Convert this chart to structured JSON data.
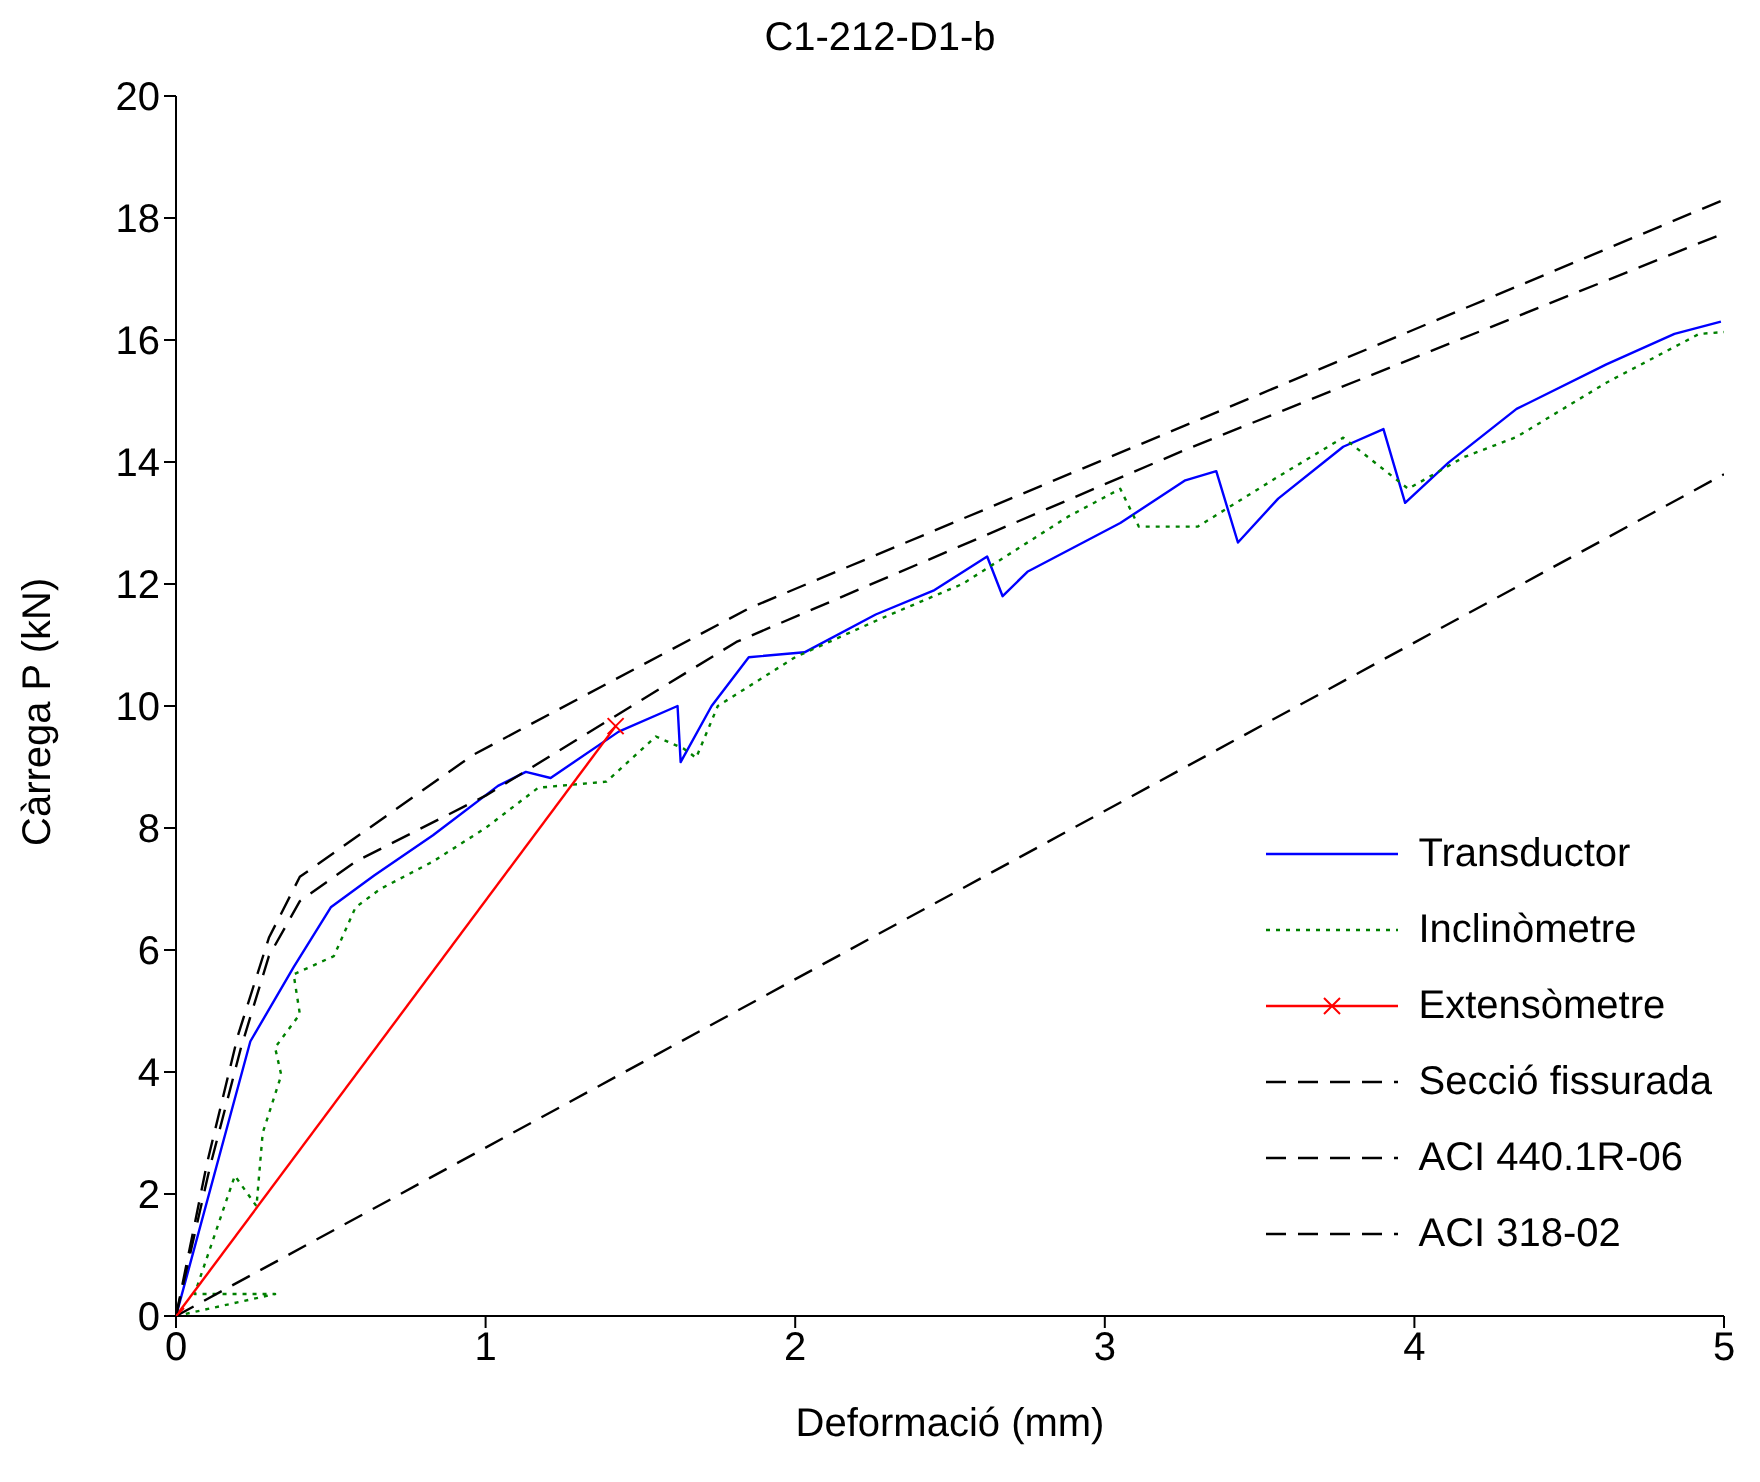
{
  "chart_data": {
    "type": "line",
    "title": "C1-212-D1-b",
    "xlabel": "Deformació (mm)",
    "ylabel": "Càrrega P (kN)",
    "xlim": [
      0,
      5
    ],
    "xticks": [
      0,
      1,
      2,
      3,
      4,
      5
    ],
    "ylim": [
      0,
      20
    ],
    "yticks": [
      0,
      2,
      4,
      6,
      8,
      10,
      12,
      14,
      16,
      18,
      20
    ],
    "legend": "bottom right",
    "marker": "none",
    "series": [
      {
        "name": "Transductor",
        "color": "#0000ff",
        "line_style": "solid",
        "x": [
          0,
          0.24,
          0.38,
          0.5,
          0.64,
          0.83,
          1.04,
          1.13,
          1.21,
          1.43,
          1.62,
          1.63,
          1.73,
          1.85,
          2.03,
          2.26,
          2.45,
          2.62,
          2.67,
          2.75,
          3.05,
          3.26,
          3.36,
          3.43,
          3.56,
          3.77,
          3.9,
          3.97,
          4.11,
          4.33,
          4.62,
          4.84,
          4.99
        ],
        "values": [
          0,
          4.5,
          5.72,
          6.7,
          7.22,
          7.88,
          8.69,
          8.92,
          8.82,
          9.58,
          10.0,
          9.08,
          10.0,
          10.8,
          10.88,
          11.5,
          11.9,
          12.45,
          11.8,
          12.2,
          13.0,
          13.7,
          13.85,
          12.68,
          13.4,
          14.25,
          14.54,
          13.33,
          13.99,
          14.87,
          15.6,
          16.1,
          16.3
        ]
      },
      {
        "name": "Inclinòmetre",
        "color": "#008000",
        "line_style": "dotted",
        "x": [
          0,
          0.32,
          0.06,
          0.19,
          0.26,
          0.28,
          0.34,
          0.32,
          0.4,
          0.38,
          0.51,
          0.58,
          0.66,
          0.83,
          1.0,
          1.17,
          1.39,
          1.55,
          1.64,
          1.68,
          1.75,
          2.0,
          2.28,
          2.54,
          2.88,
          3.05,
          3.11,
          3.3,
          3.56,
          3.77,
          3.98,
          4.16,
          4.33,
          4.62,
          4.92,
          5.0
        ],
        "values": [
          0,
          0.36,
          0.36,
          2.3,
          1.8,
          3.0,
          3.95,
          4.4,
          4.95,
          5.6,
          5.9,
          6.7,
          7.0,
          7.45,
          8.0,
          8.66,
          8.76,
          9.5,
          9.3,
          9.15,
          10.0,
          10.8,
          11.44,
          12.0,
          13.1,
          13.56,
          12.94,
          12.94,
          13.76,
          14.4,
          13.56,
          14.08,
          14.41,
          15.3,
          16.1,
          16.13
        ]
      },
      {
        "name": "Extensòmetre",
        "color": "#ff0000",
        "line_style": "solid",
        "marker": "cross",
        "x": [
          0,
          1.42
        ],
        "values": [
          0,
          9.67
        ]
      },
      {
        "name": "Secció fissurada",
        "color": "#000000",
        "line_style": "dashed",
        "x": [
          0,
          5
        ],
        "values": [
          0,
          13.8
        ]
      },
      {
        "name": "ACI 440.1R-06",
        "color": "#000000",
        "line_style": "dashed",
        "x": [
          0,
          0.11,
          0.21,
          0.3,
          0.4,
          0.58,
          1.0,
          1.81,
          3.26,
          5.0
        ],
        "values": [
          0,
          2.45,
          4.4,
          5.9,
          6.8,
          7.45,
          8.53,
          11.05,
          14.2,
          17.75
        ]
      },
      {
        "name": "ACI 318-02",
        "color": "#000000",
        "line_style": "dashed",
        "x": [
          0,
          0.1,
          0.2,
          0.3,
          0.4,
          0.96,
          1.85,
          3.26,
          5.0
        ],
        "values": [
          0,
          2.5,
          4.6,
          6.2,
          7.2,
          9.2,
          11.6,
          14.6,
          18.3
        ]
      }
    ]
  }
}
